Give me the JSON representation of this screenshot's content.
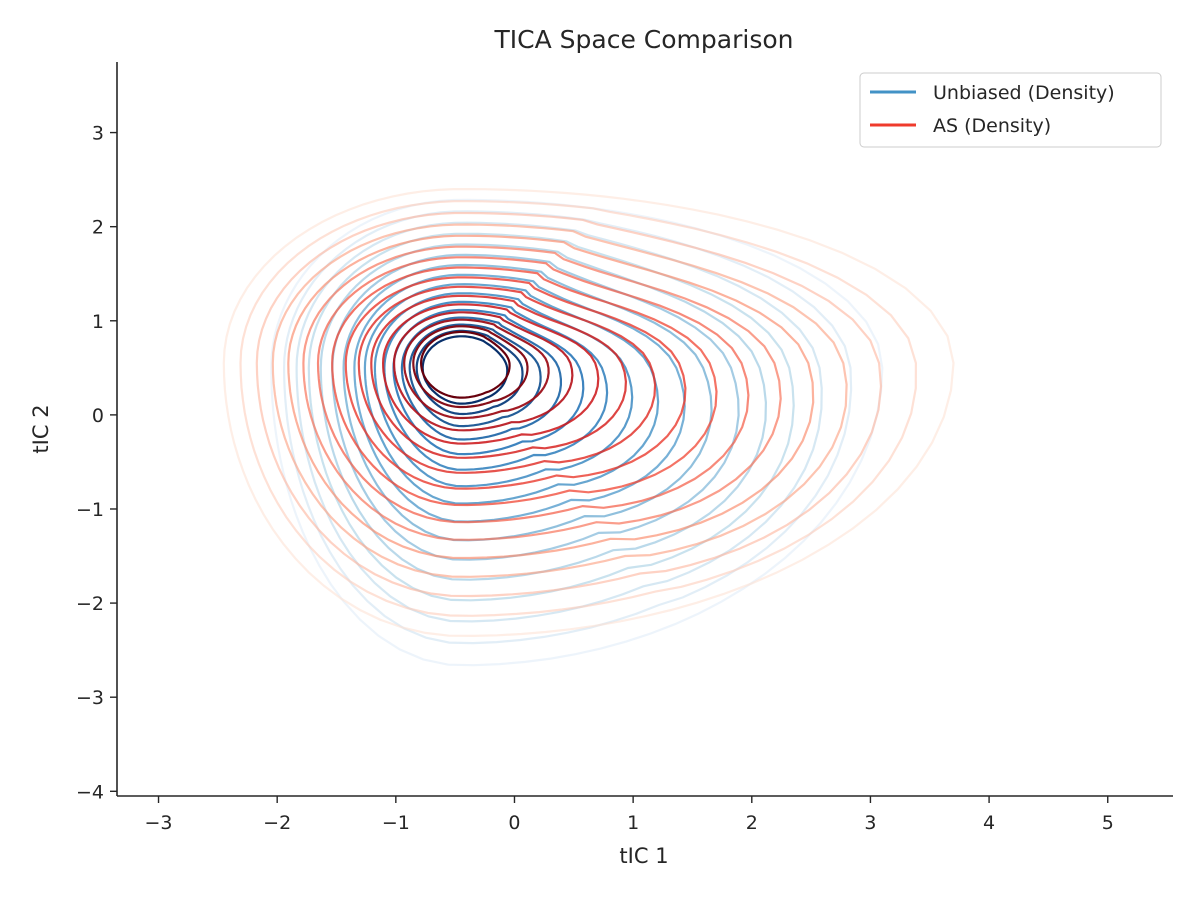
{
  "chart_data": {
    "type": "contour",
    "title": "TICA Space Comparison",
    "xlabel": "tIC 1",
    "ylabel": "tIC 2",
    "xlim": [
      -3.35,
      5.55
    ],
    "ylim": [
      -4.05,
      3.75
    ],
    "xticks": [
      -3,
      -2,
      -1,
      0,
      1,
      2,
      3,
      4,
      5
    ],
    "yticks": [
      -4,
      -3,
      -2,
      -1,
      0,
      1,
      2,
      3
    ],
    "grid": false,
    "legend": {
      "placement": "top-right"
    },
    "series": [
      {
        "name": "Unbiased (Density)",
        "color": "#4292c6",
        "colormap": "Blues",
        "levels": 16,
        "peak": [
          -0.45,
          0.5
        ],
        "extent": {
          "left": -2.05,
          "right": 3.1,
          "top": 2.25,
          "bottom": -2.6
        }
      },
      {
        "name": "AS (Density)",
        "color": "#ef3b2c",
        "colormap": "Reds",
        "levels": 16,
        "peak": [
          -0.45,
          0.55
        ],
        "extent": {
          "left": -2.45,
          "right": 3.7,
          "top": 2.4,
          "bottom": -2.35
        }
      }
    ]
  }
}
